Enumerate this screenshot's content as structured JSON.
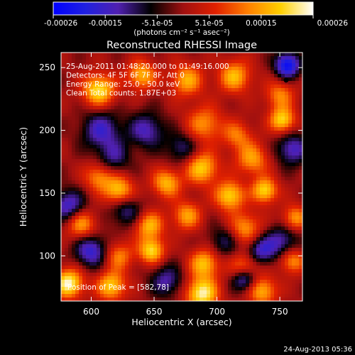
{
  "chart_data": {
    "type": "heatmap",
    "title": "Reconstructed RHESSI Image",
    "xlabel": "Heliocentric X (arcsec)",
    "ylabel": "Heliocentric Y (arcsec)",
    "xlim": [
      576,
      768
    ],
    "ylim": [
      64,
      262
    ],
    "x_ticks": [
      600,
      650,
      700,
      750
    ],
    "y_ticks": [
      100,
      150,
      200,
      250
    ],
    "colorbar": {
      "range": [
        -0.00026,
        0.00026
      ],
      "tick_labels": [
        "-0.00026",
        "-0.00015",
        "-5.1e-05",
        "5.1e-05",
        "0.00015",
        "0.00026"
      ],
      "unit_label": "(photons cm⁻² s⁻¹ asec⁻²)",
      "colormap": [
        "#0000ff",
        "#2020e0",
        "#5020b0",
        "#000000",
        "#a01010",
        "#e02000",
        "#ff8000",
        "#ffd000",
        "#ffffff"
      ]
    },
    "annotations": [
      "25-Aug-2011 01:48:20.000 to 01:49:16.000",
      "Detectors: 4F 5F 6F 7F 8F, Att 0",
      "Energy Range: 25.0 - 50.0 keV",
      "Clean    Total counts: 1.87E+03"
    ],
    "peak_label": "Position of Peak = [582,78]",
    "peak_position": [
      582,
      78
    ],
    "max_marker": [
      755,
      240
    ],
    "sources": [
      {
        "x": 606,
        "y": 232,
        "amp": 1.0,
        "s": 9
      },
      {
        "x": 640,
        "y": 244,
        "amp": 0.8,
        "s": 8
      },
      {
        "x": 676,
        "y": 240,
        "amp": 0.75,
        "s": 9
      },
      {
        "x": 714,
        "y": 243,
        "amp": 0.8,
        "s": 9
      },
      {
        "x": 750,
        "y": 228,
        "amp": 0.6,
        "s": 8
      },
      {
        "x": 752,
        "y": 208,
        "amp": 0.95,
        "s": 7
      },
      {
        "x": 690,
        "y": 205,
        "amp": 0.65,
        "s": 10
      },
      {
        "x": 716,
        "y": 196,
        "amp": 0.55,
        "s": 8
      },
      {
        "x": 728,
        "y": 177,
        "amp": 0.7,
        "s": 9
      },
      {
        "x": 606,
        "y": 163,
        "amp": 0.65,
        "s": 8
      },
      {
        "x": 622,
        "y": 152,
        "amp": 0.9,
        "s": 8
      },
      {
        "x": 660,
        "y": 158,
        "amp": 0.8,
        "s": 8
      },
      {
        "x": 688,
        "y": 170,
        "amp": 0.9,
        "s": 9
      },
      {
        "x": 710,
        "y": 148,
        "amp": 0.95,
        "s": 8
      },
      {
        "x": 738,
        "y": 152,
        "amp": 0.95,
        "s": 7
      },
      {
        "x": 592,
        "y": 125,
        "amp": 0.75,
        "s": 8
      },
      {
        "x": 646,
        "y": 124,
        "amp": 0.8,
        "s": 8
      },
      {
        "x": 676,
        "y": 132,
        "amp": 0.7,
        "s": 8
      },
      {
        "x": 722,
        "y": 122,
        "amp": 0.7,
        "s": 9
      },
      {
        "x": 762,
        "y": 130,
        "amp": 0.7,
        "s": 7
      },
      {
        "x": 622,
        "y": 100,
        "amp": 0.6,
        "s": 8
      },
      {
        "x": 648,
        "y": 104,
        "amp": 0.95,
        "s": 7
      },
      {
        "x": 690,
        "y": 94,
        "amp": 0.85,
        "s": 8
      },
      {
        "x": 722,
        "y": 90,
        "amp": 0.8,
        "s": 8
      },
      {
        "x": 760,
        "y": 96,
        "amp": 0.7,
        "s": 7
      },
      {
        "x": 582,
        "y": 78,
        "amp": 1.15,
        "s": 8
      },
      {
        "x": 616,
        "y": 76,
        "amp": 0.9,
        "s": 8
      },
      {
        "x": 688,
        "y": 70,
        "amp": 1.1,
        "s": 9
      },
      {
        "x": 736,
        "y": 72,
        "amp": 0.8,
        "s": 8
      },
      {
        "x": 608,
        "y": 200,
        "amp": -0.7,
        "s": 11
      },
      {
        "x": 644,
        "y": 200,
        "amp": -0.65,
        "s": 10
      },
      {
        "x": 618,
        "y": 178,
        "amp": -0.5,
        "s": 9
      },
      {
        "x": 672,
        "y": 186,
        "amp": -0.5,
        "s": 9
      },
      {
        "x": 760,
        "y": 185,
        "amp": -0.7,
        "s": 9
      },
      {
        "x": 756,
        "y": 252,
        "amp": -1.1,
        "s": 7
      },
      {
        "x": 582,
        "y": 140,
        "amp": -0.75,
        "s": 9
      },
      {
        "x": 628,
        "y": 136,
        "amp": -0.55,
        "s": 9
      },
      {
        "x": 752,
        "y": 112,
        "amp": -0.6,
        "s": 9
      },
      {
        "x": 600,
        "y": 104,
        "amp": -0.8,
        "s": 9
      },
      {
        "x": 735,
        "y": 104,
        "amp": -0.7,
        "s": 8
      },
      {
        "x": 722,
        "y": 82,
        "amp": -1.0,
        "s": 7
      },
      {
        "x": 660,
        "y": 80,
        "amp": -0.6,
        "s": 9
      },
      {
        "x": 706,
        "y": 112,
        "amp": -0.45,
        "s": 9
      }
    ]
  },
  "timestamp": "24-Aug-2013 05:36"
}
